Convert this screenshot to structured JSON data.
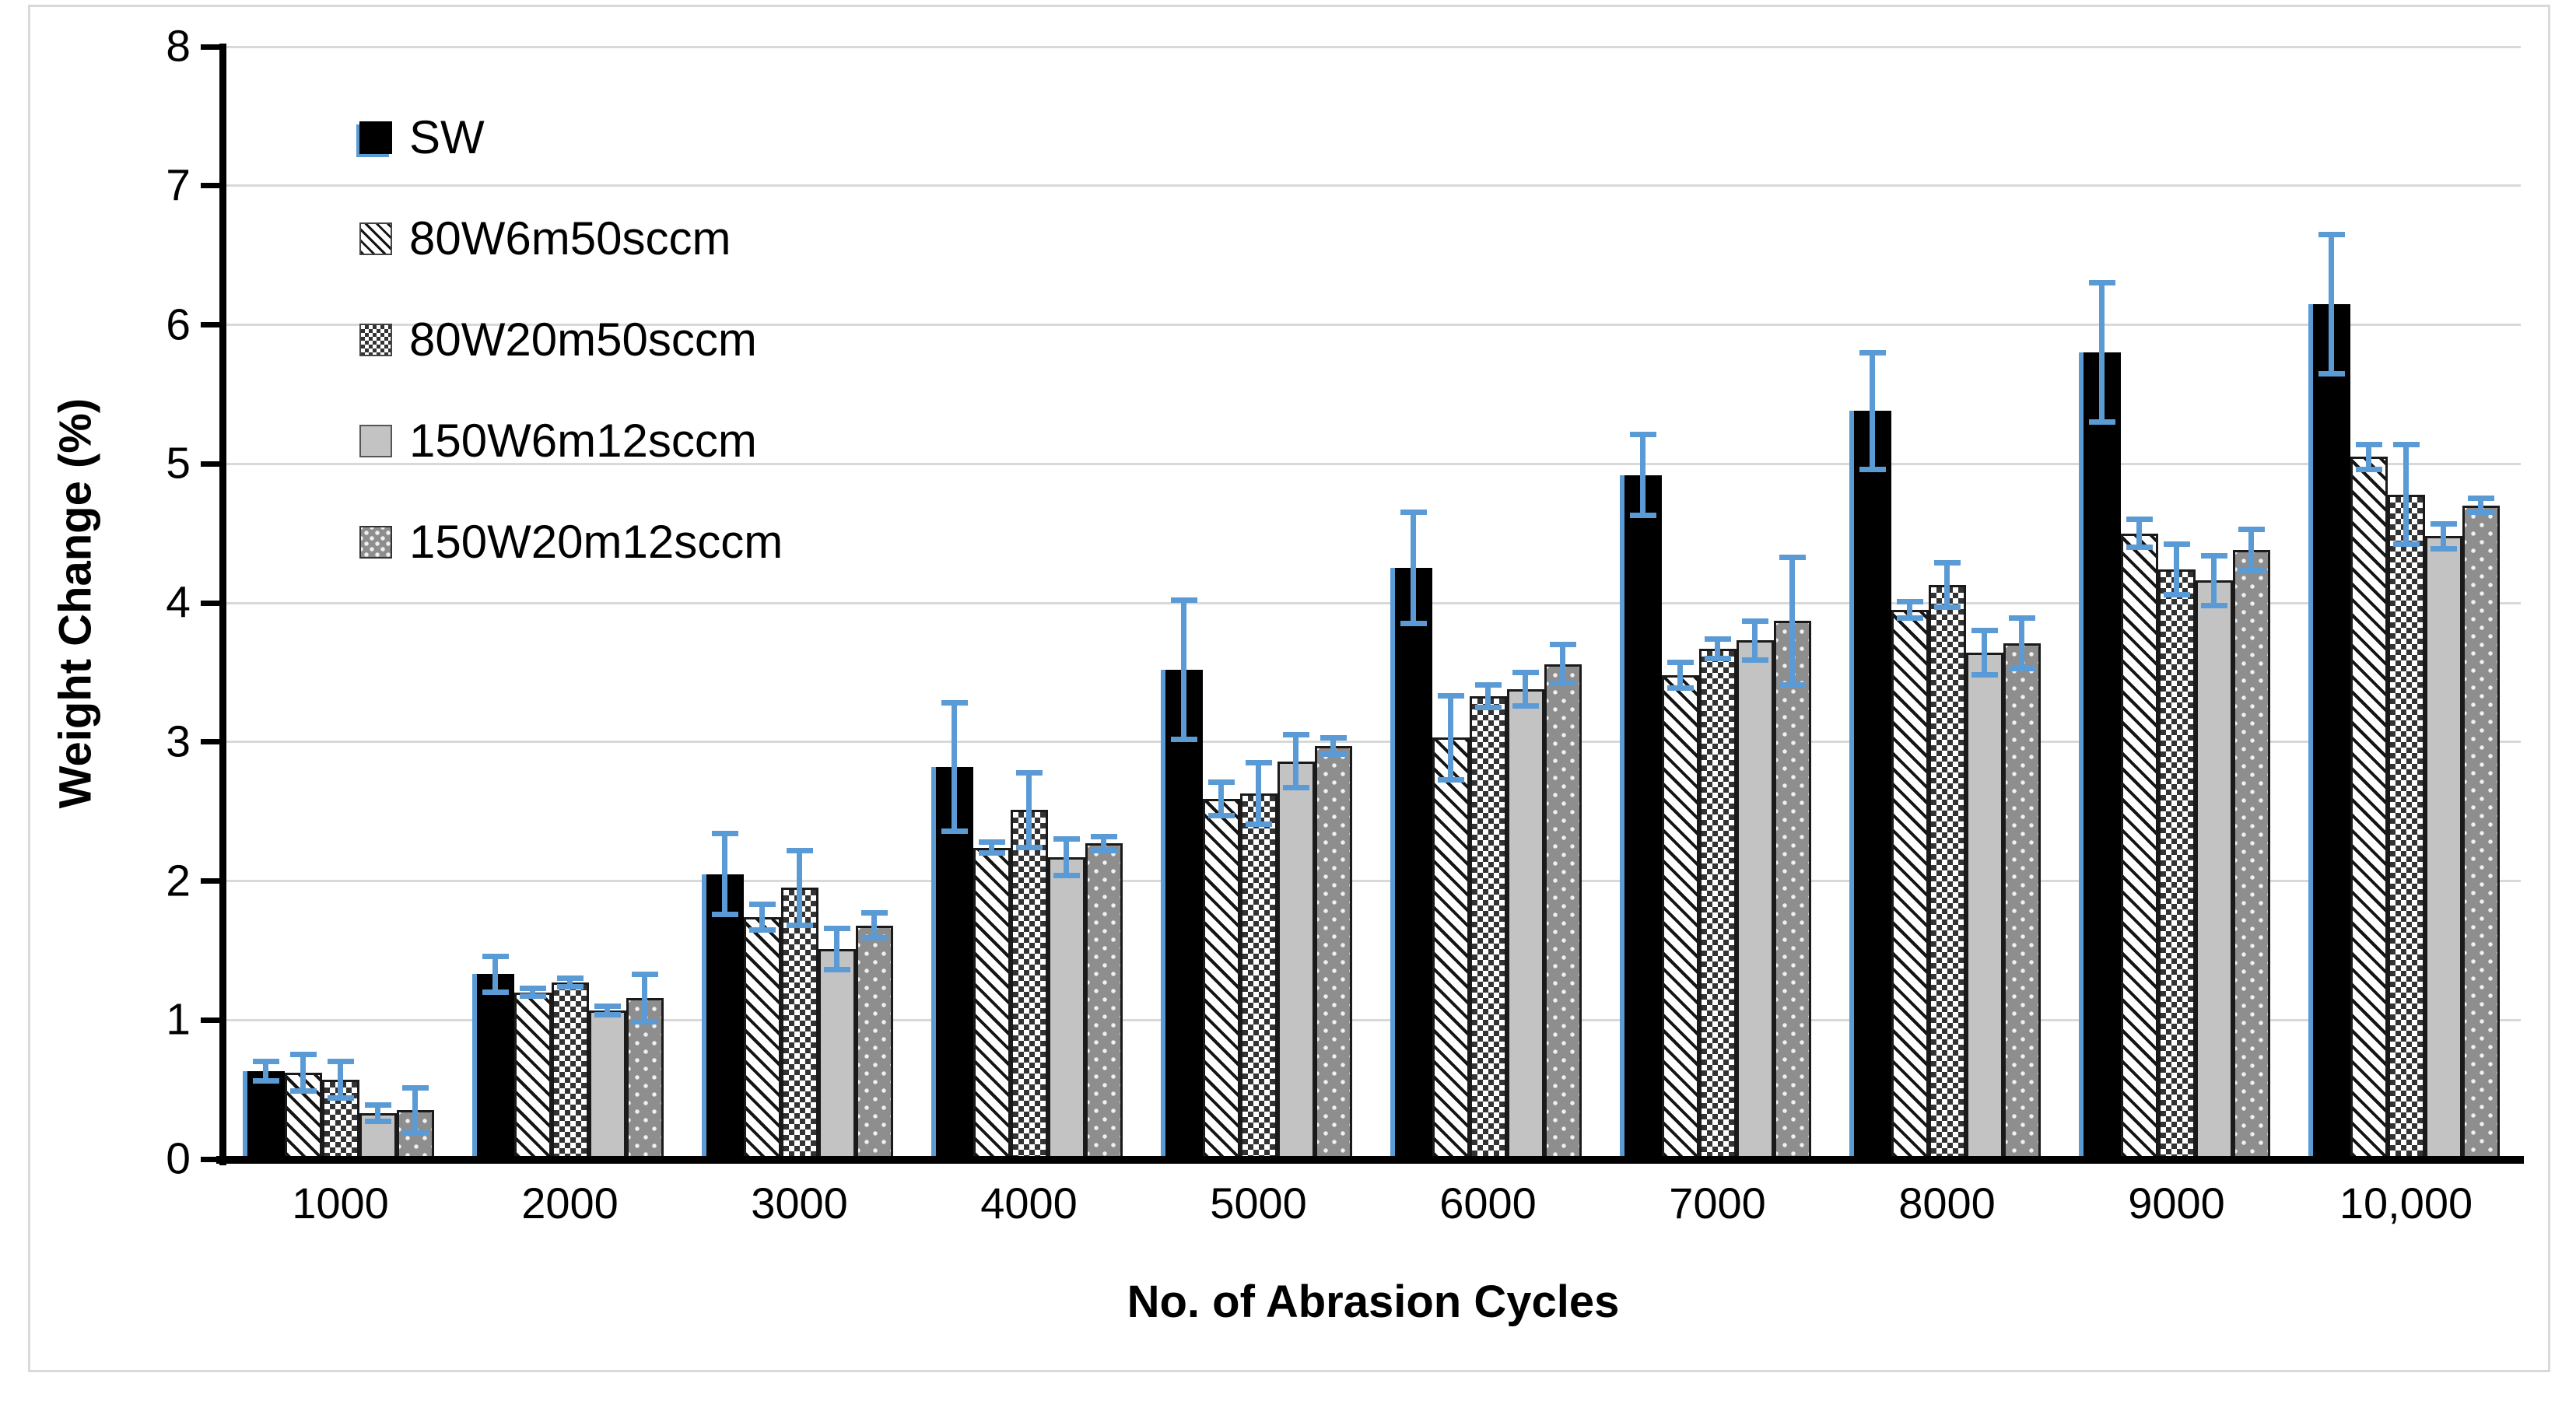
{
  "chart_data": {
    "type": "bar",
    "title": "",
    "xlabel": "No. of Abrasion Cycles",
    "ylabel": "Weight Change (%)",
    "ylim": [
      0,
      8
    ],
    "yticks": [
      0,
      1,
      2,
      3,
      4,
      5,
      6,
      7,
      8
    ],
    "grid": "horizontal",
    "gridline_color": "#d9d9d9",
    "axis_color": "#000000",
    "error_bar_color": "#5B9BD5",
    "sw_outline_color": "#5B9BD5",
    "legend_position": "inside-top-left",
    "categories": [
      "1000",
      "2000",
      "3000",
      "4000",
      "5000",
      "6000",
      "7000",
      "8000",
      "9000",
      "10,000"
    ],
    "series": [
      {
        "name": "SW",
        "pattern": "solid-black",
        "fill": "#000000",
        "values": [
          0.63,
          1.33,
          2.05,
          2.82,
          3.52,
          4.25,
          4.92,
          5.38,
          5.8,
          6.15
        ],
        "errors": [
          0.07,
          0.13,
          0.29,
          0.46,
          0.5,
          0.4,
          0.29,
          0.42,
          0.5,
          0.5
        ]
      },
      {
        "name": "80W6m50sccm",
        "pattern": "diagonal-hatch",
        "fill": "#ffffff",
        "values": [
          0.62,
          1.2,
          1.74,
          2.24,
          2.59,
          3.03,
          3.48,
          3.95,
          4.5,
          5.05
        ],
        "errors": [
          0.13,
          0.03,
          0.09,
          0.04,
          0.12,
          0.3,
          0.09,
          0.06,
          0.1,
          0.09
        ]
      },
      {
        "name": "80W20m50sccm",
        "pattern": "checkerboard",
        "fill": "#ffffff",
        "values": [
          0.57,
          1.27,
          1.95,
          2.51,
          2.63,
          3.33,
          3.67,
          4.13,
          4.24,
          4.78
        ],
        "errors": [
          0.13,
          0.03,
          0.27,
          0.27,
          0.22,
          0.08,
          0.07,
          0.16,
          0.18,
          0.36
        ]
      },
      {
        "name": "150W6m12sccm",
        "pattern": "solid-light-gray",
        "fill": "#c3c3c3",
        "values": [
          0.33,
          1.07,
          1.51,
          2.17,
          2.86,
          3.38,
          3.73,
          3.64,
          4.16,
          4.48
        ],
        "errors": [
          0.06,
          0.03,
          0.15,
          0.13,
          0.19,
          0.12,
          0.14,
          0.16,
          0.18,
          0.09
        ]
      },
      {
        "name": "150W20m12sccm",
        "pattern": "dotted-gray",
        "fill": "#8e8e8e",
        "values": [
          0.35,
          1.16,
          1.68,
          2.27,
          2.97,
          3.56,
          3.87,
          3.71,
          4.38,
          4.7
        ],
        "errors": [
          0.16,
          0.17,
          0.09,
          0.05,
          0.06,
          0.14,
          0.46,
          0.18,
          0.15,
          0.05
        ]
      }
    ]
  }
}
